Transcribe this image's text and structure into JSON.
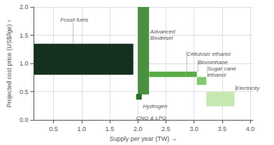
{
  "chart_data": {
    "type": "bar",
    "xlabel": "Supply per year (TW) →",
    "ylabel": "Projected cost price (US$/lge) ↑",
    "xlim": [
      0.15,
      4.05
    ],
    "xticks": [
      0.5,
      {
        "value": 1.0,
        "label": "1.0"
      },
      1.5,
      {
        "value": 2.0,
        "label": "2.0"
      },
      2.5,
      {
        "value": 3.0,
        "label": "3.0"
      },
      3.5,
      {
        "value": 4.0,
        "label": "4.0"
      }
    ],
    "ylim": [
      0.0,
      2.0
    ],
    "yticks": [
      {
        "value": 0.0,
        "label": "0.0"
      },
      0.5,
      {
        "value": 1.0,
        "label": "1.0"
      },
      1.5,
      {
        "value": 2.0,
        "label": "2.0"
      }
    ],
    "grid": true,
    "bars": [
      {
        "label": "Fossil fuels",
        "x_start": 0.15,
        "x_end": 1.92,
        "y_bottom": 0.8,
        "y_top": 1.35,
        "color": "#16301f",
        "label_x": 0.62,
        "label_y": 1.72,
        "connector_x": 0.85,
        "connector_y1": 1.35,
        "connector_y2": 1.72
      },
      {
        "label": "Advanced\nBiodiesel",
        "x_start": 2.0,
        "x_end": 2.2,
        "y_bottom": 0.45,
        "y_top": 2.0,
        "color": "#4a9040",
        "label_x": 2.22,
        "label_y": 1.62,
        "connector_x": null,
        "connector_y1": null,
        "connector_y2": null
      },
      {
        "label": "Hydrogen",
        "x_start": 1.97,
        "x_end": 2.07,
        "y_bottom": 0.36,
        "y_top": 0.46,
        "color": "#2d6b2a",
        "label_x": 2.09,
        "label_y": 0.3,
        "connector_x": null,
        "connector_y1": null,
        "connector_y2": null
      },
      {
        "label": "CNG & LPG",
        "x_start": null,
        "x_end": null,
        "y_bottom": null,
        "y_top": null,
        "color": null,
        "label_x": 1.97,
        "label_y": 0.09,
        "connector_x": null,
        "connector_y1": null,
        "connector_y2": null
      },
      {
        "label": "Cellulosic ethanol",
        "x_start": 2.2,
        "x_end": 2.85,
        "y_bottom": 0.76,
        "y_top": 0.855,
        "color": "#5aaa45",
        "label_x": 2.87,
        "label_y": 1.22,
        "connector_x": 2.87,
        "connector_y1": 0.855,
        "connector_y2": 1.22
      },
      {
        "label": "Biomethane",
        "x_start": 2.85,
        "x_end": 3.05,
        "y_bottom": 0.76,
        "y_top": 0.855,
        "color": "#5aaa45",
        "label_x": 3.07,
        "label_y": 1.07,
        "connector_x": 3.07,
        "connector_y1": 0.855,
        "connector_y2": 1.07
      },
      {
        "label": "Sugar cane\nethanol",
        "x_start": 3.05,
        "x_end": 3.22,
        "y_bottom": 0.62,
        "y_top": 0.76,
        "color": "#85c870",
        "label_x": 3.24,
        "label_y": 0.96,
        "connector_x": 3.24,
        "connector_y1": 0.76,
        "connector_y2": 0.96
      },
      {
        "label": "Electricity",
        "x_start": 3.22,
        "x_end": 3.72,
        "y_bottom": 0.24,
        "y_top": 0.5,
        "color": "#c5e8b0",
        "label_x": 3.74,
        "label_y": 0.62,
        "connector_x": 3.74,
        "connector_y1": 0.5,
        "connector_y2": 0.62
      }
    ]
  }
}
